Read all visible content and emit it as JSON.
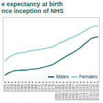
{
  "chart_data": {
    "type": "line",
    "title": "e expectancy at birth",
    "subtitle": "nce inception of NHS",
    "categories": [
      "1950",
      "1952",
      "1954",
      "1956",
      "1958",
      "1960",
      "1962",
      "1964",
      "1966",
      "1968",
      "1970",
      "1972",
      "1974",
      "1976",
      "1978",
      "1980-1982",
      "1983-1985",
      "1986-1988",
      "1989-1991",
      "1992-1994",
      "1995-1997",
      "1998-2000",
      "2001-2003",
      "2004-2006",
      "2007-2009",
      "2010-2012",
      "2013-2015",
      "2016-2018"
    ],
    "series": [
      {
        "name": "Males",
        "color": "#1a6b6b",
        "values": [
          66.4,
          67.1,
          67.6,
          67.9,
          68.0,
          68.1,
          68.0,
          68.3,
          68.4,
          68.5,
          68.7,
          69.0,
          69.3,
          69.6,
          70.0,
          70.8,
          71.5,
          72.2,
          72.9,
          73.6,
          74.2,
          75.0,
          75.8,
          76.9,
          77.8,
          78.8,
          79.2,
          79.4
        ]
      },
      {
        "name": "Females",
        "color": "#7fd0c8",
        "values": [
          71.2,
          72.4,
          73.1,
          73.6,
          73.9,
          74.1,
          74.2,
          74.6,
          74.8,
          74.9,
          75.1,
          75.3,
          75.5,
          75.8,
          76.1,
          76.8,
          77.4,
          77.8,
          78.4,
          79.0,
          79.4,
          80.0,
          80.6,
          81.3,
          82.0,
          82.7,
          83.1,
          83.1
        ]
      }
    ],
    "ylim": [
      64,
      86
    ],
    "tick_labels": "x",
    "legend": "bottom-right"
  }
}
